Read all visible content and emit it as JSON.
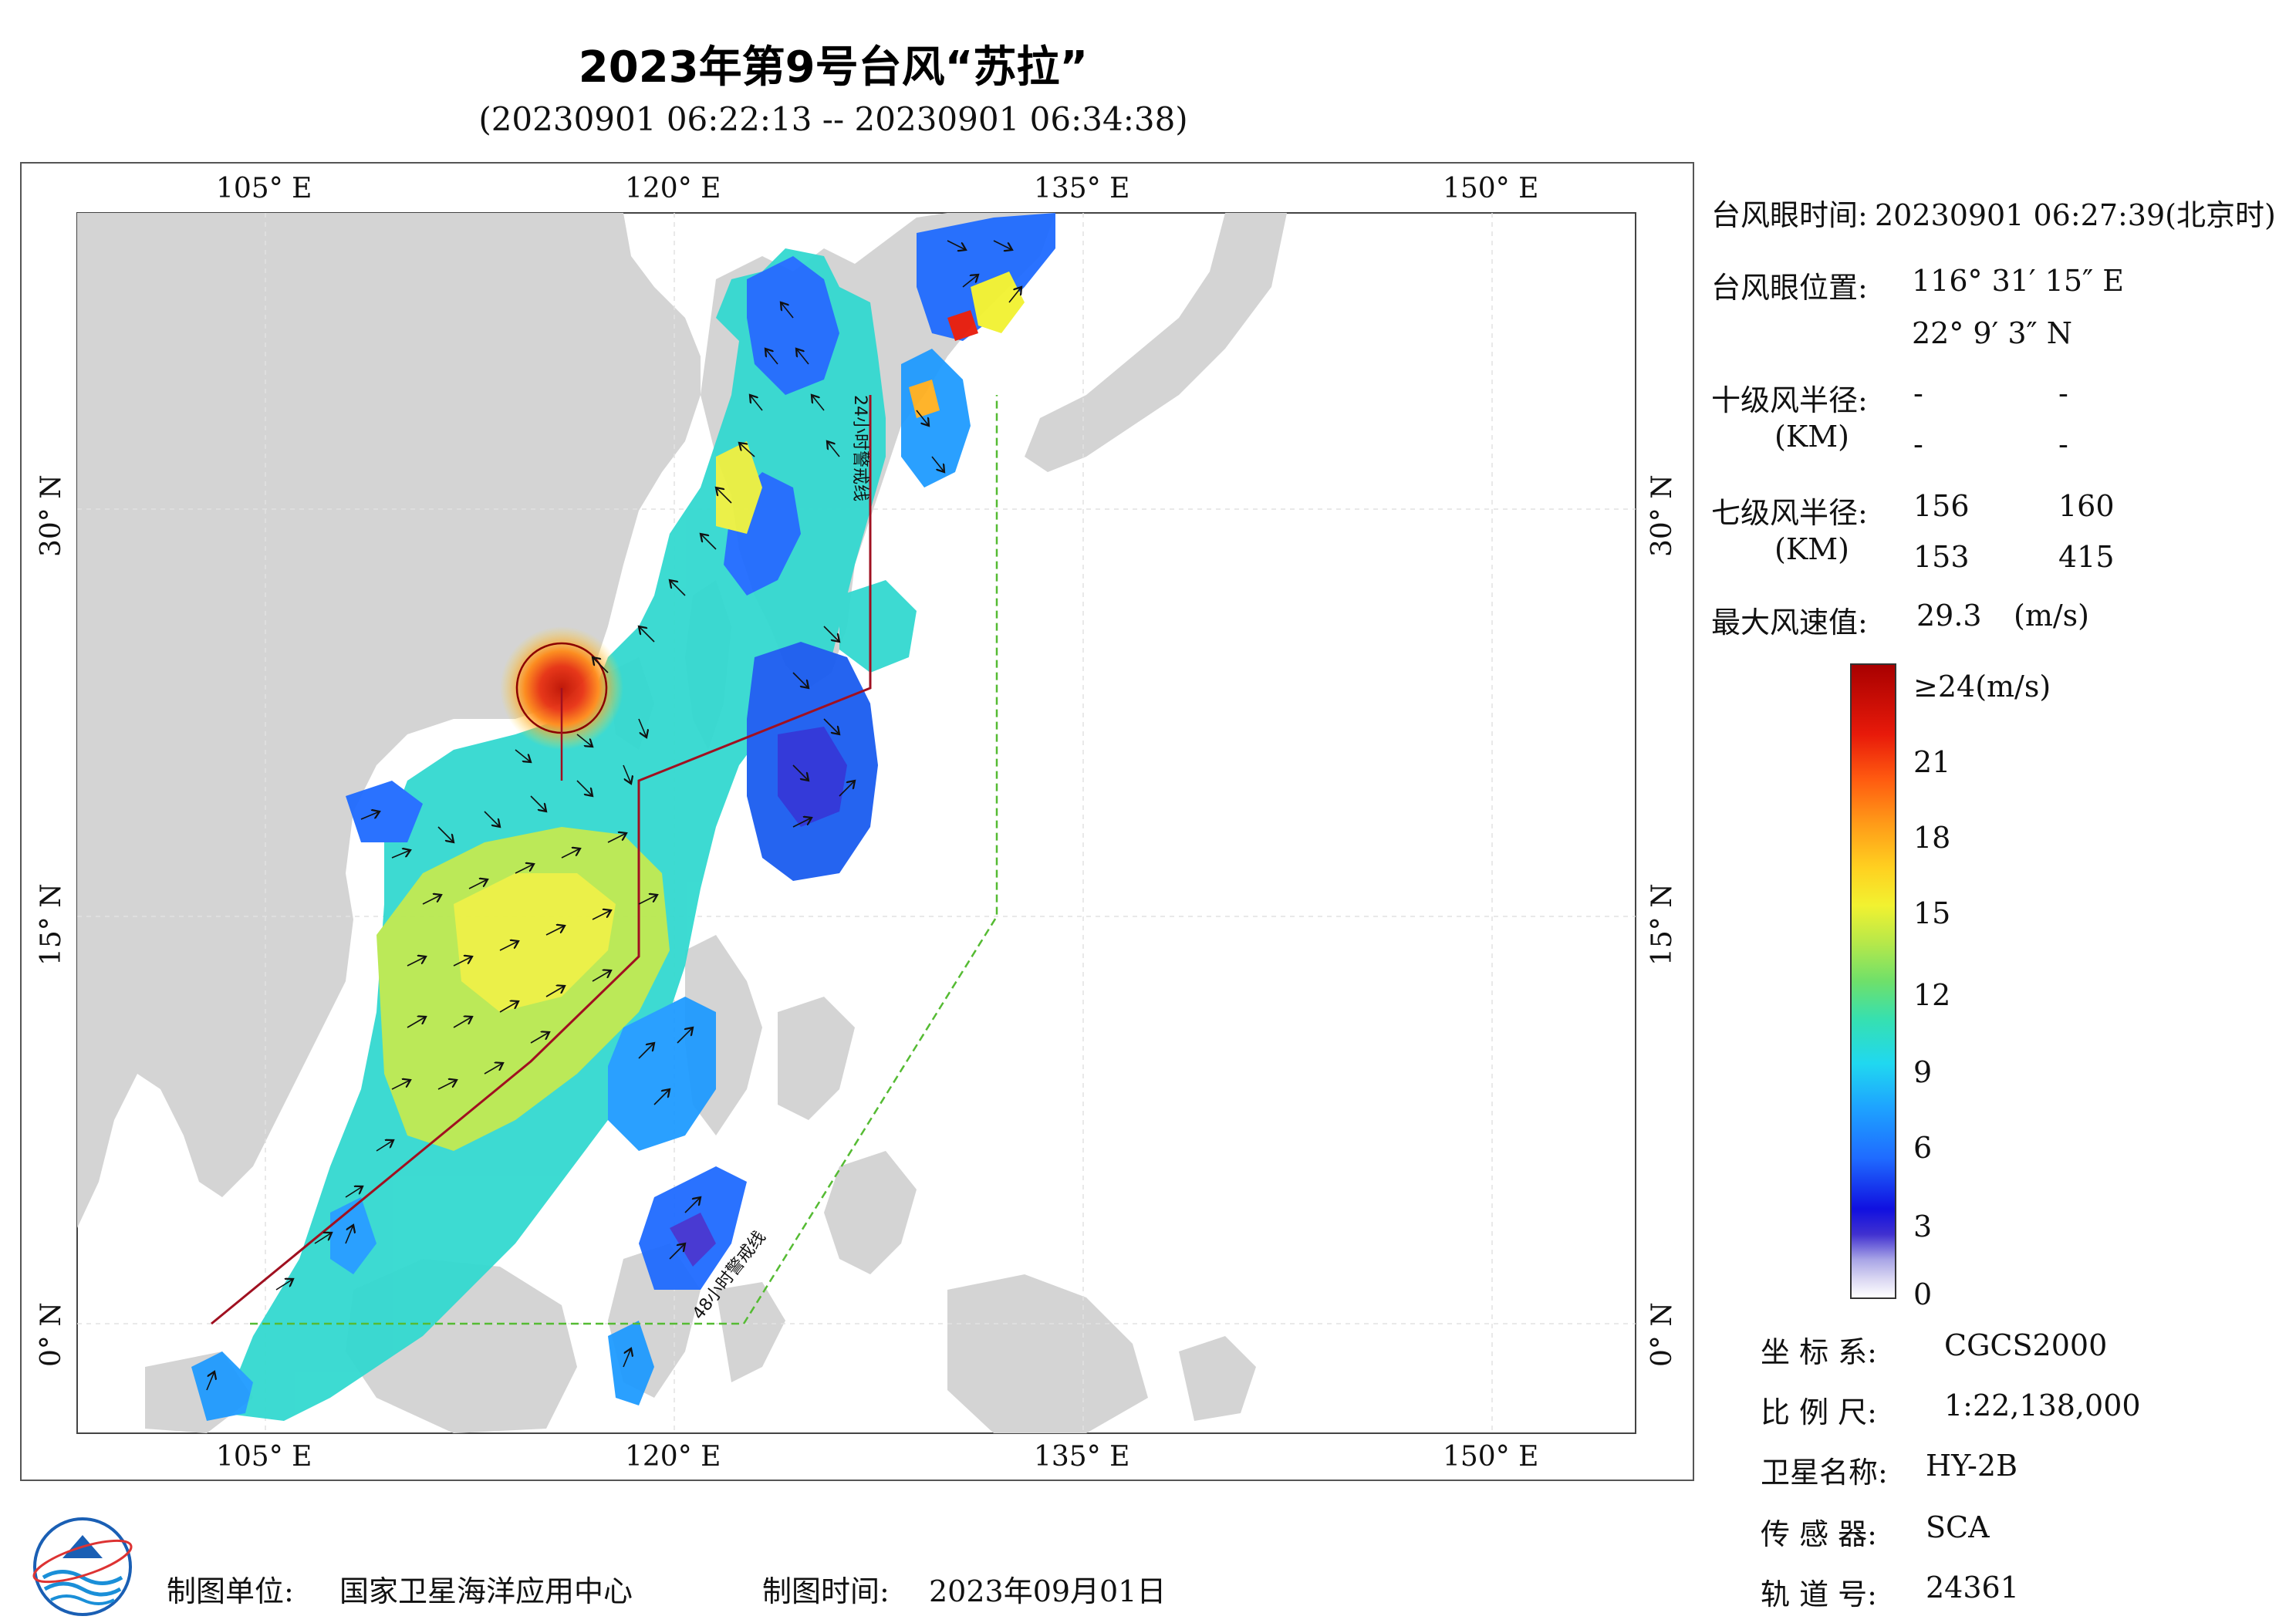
{
  "title": "2023年第9号台风“苏拉”",
  "subtitle": "(20230901 06:22:13 -- 20230901 06:34:38)",
  "axes": {
    "top_lon": [
      "105° E",
      "120° E",
      "135° E",
      "150° E"
    ],
    "bottom_lon": [
      "105° E",
      "120° E",
      "135° E",
      "150° E"
    ],
    "left_lat": [
      "30° N",
      "15° N",
      "0° N"
    ],
    "right_lat": [
      "30° N",
      "15° N",
      "0° N"
    ]
  },
  "map_labels": {
    "line_24h": "24小时警戒线",
    "line_48h": "48小时警戒线"
  },
  "info": {
    "eye_time_label": "台风眼时间:",
    "eye_time_value": "20230901 06:27:39(北京时)",
    "eye_pos_label": "台风眼位置:",
    "eye_lon": "116° 31′ 15″ E",
    "eye_lat": "22° 9′ 3″ N",
    "r10_label": "十级风半径:",
    "r10_unit": "(KM)",
    "r10_values": [
      "-",
      "-",
      "-",
      "-"
    ],
    "r7_label": "七级风半径:",
    "r7_unit": "(KM)",
    "r7_values": [
      "156",
      "160",
      "153",
      "415"
    ],
    "max_wind_label": "最大风速值:",
    "max_wind_value": "29.3",
    "max_wind_unit": "(m/s)"
  },
  "colorbar": {
    "labels": [
      "≥24(m/s)",
      "21",
      "18",
      "15",
      "12",
      "9",
      "6",
      "3",
      "0"
    ],
    "min": 0,
    "max": 24
  },
  "meta": {
    "crs_label": "坐 标 系:",
    "crs_value": "CGCS2000",
    "scale_label": "比 例 尺:",
    "scale_value": "1:22,138,000",
    "sat_label": "卫星名称:",
    "sat_value": "HY-2B",
    "sensor_label": "传 感 器:",
    "sensor_value": "SCA",
    "orbit_label": "轨 道 号:",
    "orbit_value": "24361"
  },
  "footer": {
    "maker_label": "制图单位:",
    "maker_value": "国家卫星海洋应用中心",
    "date_label": "制图时间:",
    "date_value": "2023年09月01日"
  }
}
